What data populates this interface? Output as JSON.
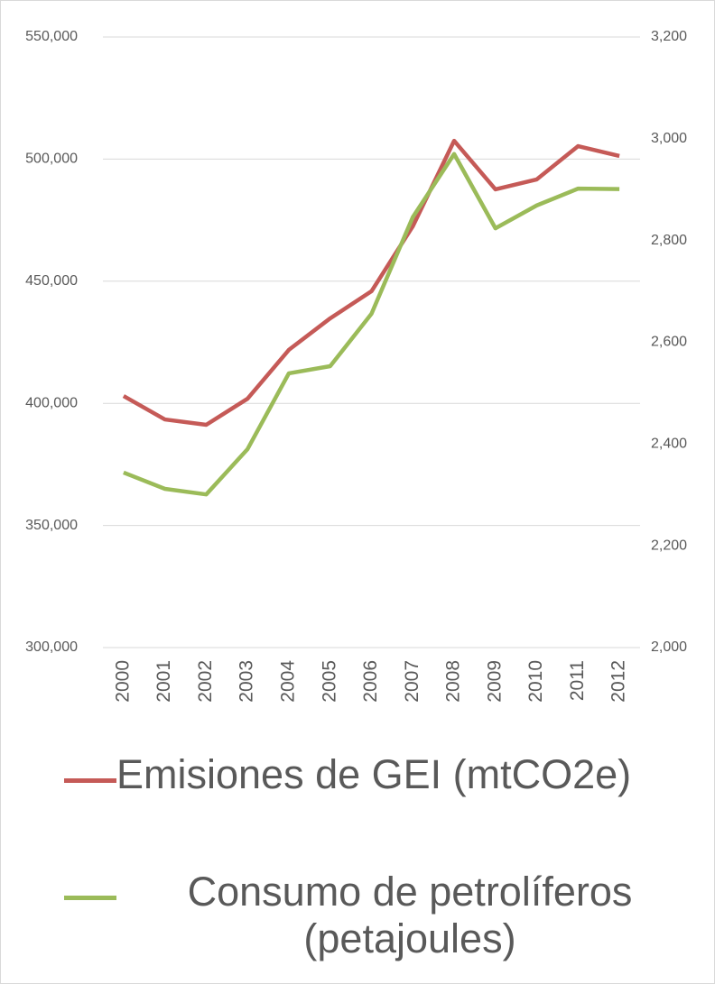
{
  "chart_data": {
    "type": "line",
    "categories": [
      "2000",
      "2001",
      "2002",
      "2003",
      "2004",
      "2005",
      "2006",
      "2007",
      "2008",
      "2009",
      "2010",
      "2011",
      "2012"
    ],
    "series": [
      {
        "name": "Emisiones de GEI (mtCO2e)",
        "color": "#c55a57",
        "axis": "y",
        "values": [
          403000,
          393400,
          391200,
          401900,
          421900,
          434800,
          445900,
          472500,
          507500,
          487600,
          491700,
          505300,
          501300
        ]
      },
      {
        "name": "Consumo de petrolíferos (petajoules)",
        "color": "#9bbb59",
        "axis": "y2",
        "values": [
          2344,
          2312,
          2301,
          2390,
          2539,
          2553,
          2656,
          2846,
          2970,
          2824,
          2869,
          2902,
          2901
        ]
      }
    ],
    "ylim": [
      300000,
      550000
    ],
    "yticks": [
      {
        "value": 300000,
        "label": "300,000"
      },
      {
        "value": 350000,
        "label": "350,000"
      },
      {
        "value": 400000,
        "label": "400,000"
      },
      {
        "value": 450000,
        "label": "450,000"
      },
      {
        "value": 500000,
        "label": "500,000"
      },
      {
        "value": 550000,
        "label": "550,000"
      }
    ],
    "y2lim": [
      2000,
      3200
    ],
    "y2ticks": [
      {
        "value": 2000,
        "label": "2,000"
      },
      {
        "value": 2200,
        "label": "2,200"
      },
      {
        "value": 2400,
        "label": "2,400"
      },
      {
        "value": 2600,
        "label": "2,600"
      },
      {
        "value": 2800,
        "label": "2,800"
      },
      {
        "value": 3000,
        "label": "3,000"
      },
      {
        "value": 3200,
        "label": "3,200"
      }
    ],
    "grid": true,
    "legend": "bottom"
  }
}
